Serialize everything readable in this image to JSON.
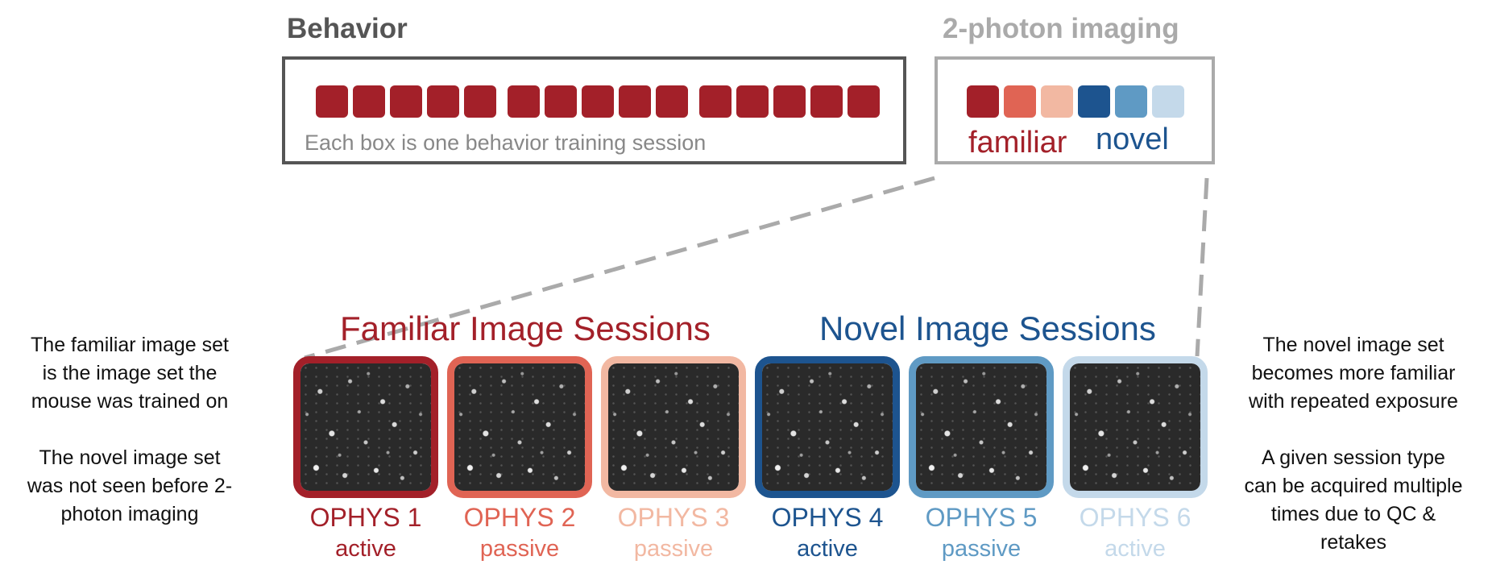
{
  "behavior": {
    "title": "Behavior",
    "caption": "Each box is one behavior training session",
    "session_color": "#a32029",
    "square_groups": [
      5,
      5,
      5
    ]
  },
  "imaging": {
    "title": "2-photon imaging",
    "familiar_label": "familiar",
    "novel_label": "novel",
    "square_colors": [
      "#a32029",
      "#e06454",
      "#f2b8a2",
      "#1d548f",
      "#5f9ac4",
      "#c4d9ea"
    ]
  },
  "groups": {
    "familiar_title": "Familiar Image Sessions",
    "novel_title": "Novel Image Sessions"
  },
  "sessions": [
    {
      "name": "OPHYS 1",
      "mode": "active",
      "color": "#a32029"
    },
    {
      "name": "OPHYS 2",
      "mode": "passive",
      "color": "#e06454"
    },
    {
      "name": "OPHYS 3",
      "mode": "passive",
      "color": "#f2b8a2"
    },
    {
      "name": "OPHYS 4",
      "mode": "active",
      "color": "#1d548f"
    },
    {
      "name": "OPHYS 5",
      "mode": "passive",
      "color": "#5f9ac4"
    },
    {
      "name": "OPHYS 6",
      "mode": "active",
      "color": "#c4d9ea"
    }
  ],
  "notes": {
    "left_1": "The familiar image set\nis the image set the\nmouse was trained on",
    "left_2": "The novel image set\nwas not seen before 2-\nphoton imaging",
    "right_1": "The novel image set\nbecomes more familiar\nwith repeated exposure",
    "right_2": "A given session type\ncan be acquired multiple\ntimes due to QC &\nretakes"
  },
  "connector_color": "#aaaaaa"
}
